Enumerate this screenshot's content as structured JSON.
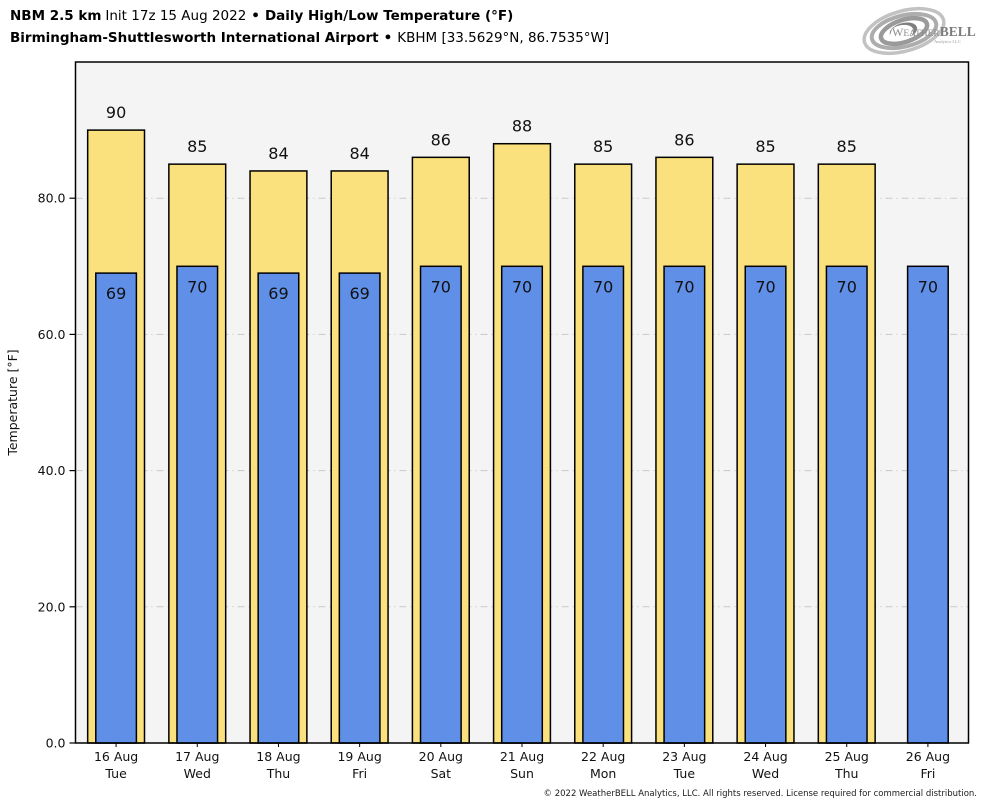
{
  "header": {
    "title": {
      "model": "NBM 2.5 km",
      "init": "Init 17z 15 Aug 2022",
      "sep": "•",
      "product": "Daily High/Low Temperature (°F)"
    },
    "station": {
      "name": "Birmingham-Shuttlesworth International Airport",
      "sep": "•",
      "meta": "KBHM [33.5629°N, 86.7535°W]"
    }
  },
  "logo": {
    "brand_weather": "Weather",
    "brand_bell": "BELL",
    "subtext": "Analytics LLC"
  },
  "footer": {
    "copyright": "© 2022 WeatherBELL Analytics, LLC. All rights reserved. License required for commercial distribution."
  },
  "chart_data": {
    "type": "bar",
    "title": "NBM 2.5 km Init 17z 15 Aug 2022 • Daily High/Low Temperature (°F)",
    "subtitle": "Birmingham-Shuttlesworth International Airport • KBHM [33.5629°N, 86.7535°W]",
    "xlabel": "",
    "ylabel": "Temperature [°F]",
    "ylim": [
      0,
      100
    ],
    "yticks": [
      0,
      20,
      40,
      60,
      80
    ],
    "ytick_labels": [
      "0.0",
      "20.0",
      "40.0",
      "60.0",
      "80.0"
    ],
    "categories": [
      "16 Aug",
      "17 Aug",
      "18 Aug",
      "19 Aug",
      "20 Aug",
      "21 Aug",
      "22 Aug",
      "23 Aug",
      "24 Aug",
      "25 Aug",
      "26 Aug"
    ],
    "weekdays": [
      "Tue",
      "Wed",
      "Thu",
      "Fri",
      "Sat",
      "Sun",
      "Mon",
      "Tue",
      "Wed",
      "Thu",
      "Fri"
    ],
    "series": [
      {
        "name": "Daily High",
        "color": "#FBE17E",
        "values": [
          90,
          85,
          84,
          84,
          86,
          88,
          85,
          86,
          85,
          85,
          null
        ]
      },
      {
        "name": "Daily Low",
        "color": "#608FE8",
        "values": [
          69,
          70,
          69,
          69,
          70,
          70,
          70,
          70,
          70,
          70,
          70
        ]
      }
    ],
    "grid": true,
    "gridline_color": "#c9c9c9",
    "legend": "none",
    "plot_background": "#f4f4f4",
    "bar_outline": "#000000"
  }
}
